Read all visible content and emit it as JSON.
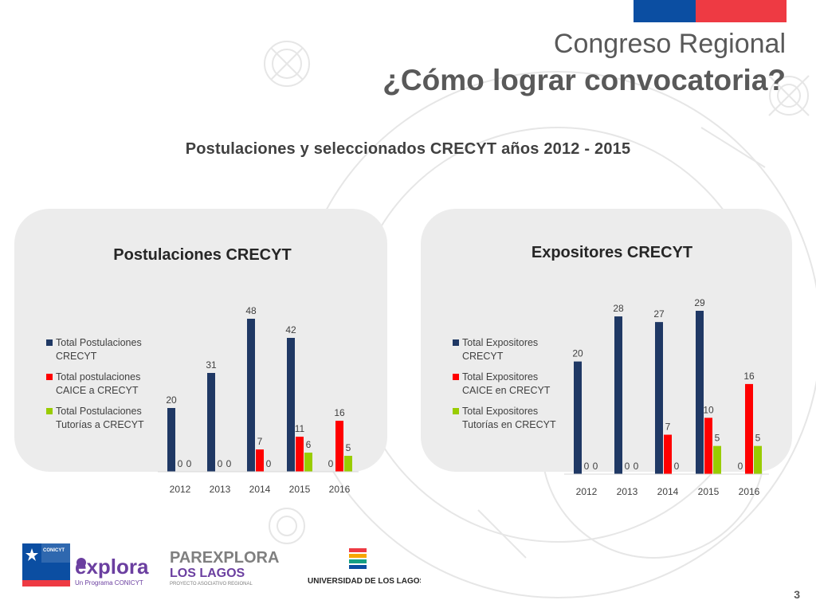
{
  "header": {
    "title_line1": "Congreso Regional",
    "title_line2": "¿Cómo lograr convocatoria?",
    "subtitle": "Postulaciones y seleccionados CRECYT años 2012 - 2015"
  },
  "colors": {
    "series_dark": "#1f3864",
    "series_red": "#ff0000",
    "series_green": "#99cc00",
    "flag_blue": "#0b4ea2",
    "flag_red": "#ee3a43"
  },
  "chart_data": [
    {
      "type": "bar",
      "title": "Postulaciones CRECYT",
      "categories": [
        "2012",
        "2013",
        "2014",
        "2015",
        "2016"
      ],
      "series": [
        {
          "name": "Total Postulaciones CRECYT",
          "legend_lines": [
            "Total Postulaciones",
            "CRECYT"
          ],
          "values": [
            20,
            31,
            48,
            42,
            0
          ]
        },
        {
          "name": "Total postulaciones CAICE a CRECYT",
          "legend_lines": [
            "Total postulaciones",
            "CAICE a CRECYT"
          ],
          "values": [
            0,
            0,
            7,
            11,
            16
          ]
        },
        {
          "name": "Total Postulaciones Tutorías a CRECYT",
          "legend_lines": [
            "Total Postulaciones",
            "Tutorías a CRECYT"
          ],
          "values": [
            0,
            0,
            0,
            6,
            5
          ]
        }
      ],
      "legend_position": "left",
      "grid": false,
      "ylim": [
        0,
        48
      ]
    },
    {
      "type": "bar",
      "title": "Expositores CRECYT",
      "categories": [
        "2012",
        "2013",
        "2014",
        "2015",
        "2016"
      ],
      "series": [
        {
          "name": "Total Expositores CRECYT",
          "legend_lines": [
            "Total Expositores",
            "CRECYT"
          ],
          "values": [
            20,
            28,
            27,
            29,
            0
          ]
        },
        {
          "name": "Total Expositores CAICE en CRECYT",
          "legend_lines": [
            "Total Expositores",
            "CAICE en CRECYT"
          ],
          "values": [
            0,
            0,
            7,
            10,
            16
          ]
        },
        {
          "name": "Total Expositores Tutorías en CRECYT",
          "legend_lines": [
            "Total Expositores",
            "Tutorías en CRECYT"
          ],
          "values": [
            0,
            0,
            0,
            5,
            5
          ]
        }
      ],
      "legend_position": "left",
      "grid": false,
      "ylim": [
        0,
        29
      ]
    }
  ],
  "footer": {
    "logos": [
      {
        "name": "conicyt-logo",
        "text": "CONICYT"
      },
      {
        "name": "explora-logo",
        "text": "explora",
        "tagline": "Un Programa CONICYT"
      },
      {
        "name": "parexplora-logo",
        "text": "PAREXPLORA",
        "sub": "LOS LAGOS",
        "sub2": "PROYECTO ASOCIATIVO REGIONAL"
      },
      {
        "name": "ulagos-logo",
        "text": "UNIVERSIDAD DE LOS LAGOS"
      }
    ],
    "page_number": "3"
  }
}
